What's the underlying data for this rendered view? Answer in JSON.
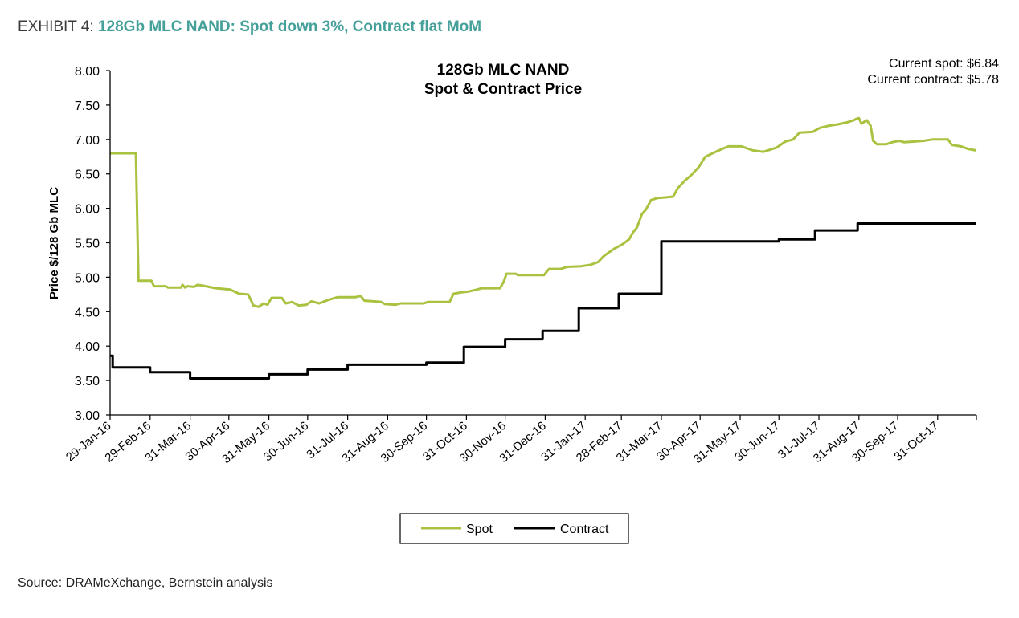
{
  "exhibit": {
    "prefix": "EXHIBIT 4:",
    "headline": "128Gb MLC NAND: Spot down 3%, Contract flat MoM"
  },
  "source": "Source: DRAMeXchange, Bernstein analysis",
  "chart_data": {
    "type": "line",
    "title": "128Gb MLC NAND",
    "subtitle": "Spot & Contract Price",
    "annotations": [
      "Current spot: $6.84",
      "Current contract: $5.78"
    ],
    "ylabel": "Price $/128 Gb MLC",
    "xlabel": "",
    "ylim": [
      3.0,
      8.0
    ],
    "xlim": [
      "2016-01-29",
      "2017-11-30"
    ],
    "y_ticks": [
      "3.00",
      "3.50",
      "4.00",
      "4.50",
      "5.00",
      "5.50",
      "6.00",
      "6.50",
      "7.00",
      "7.50",
      "8.00"
    ],
    "x_ticks": [
      {
        "date": "2016-01-29",
        "label": "29-Jan-16"
      },
      {
        "date": "2016-02-29",
        "label": "29-Feb-16"
      },
      {
        "date": "2016-03-31",
        "label": "31-Mar-16"
      },
      {
        "date": "2016-04-30",
        "label": "30-Apr-16"
      },
      {
        "date": "2016-05-31",
        "label": "31-May-16"
      },
      {
        "date": "2016-06-30",
        "label": "30-Jun-16"
      },
      {
        "date": "2016-07-31",
        "label": "31-Jul-16"
      },
      {
        "date": "2016-08-31",
        "label": "31-Aug-16"
      },
      {
        "date": "2016-09-30",
        "label": "30-Sep-16"
      },
      {
        "date": "2016-10-31",
        "label": "31-Oct-16"
      },
      {
        "date": "2016-11-30",
        "label": "30-Nov-16"
      },
      {
        "date": "2016-12-31",
        "label": "31-Dec-16"
      },
      {
        "date": "2017-01-31",
        "label": "31-Jan-17"
      },
      {
        "date": "2017-02-28",
        "label": "28-Feb-17"
      },
      {
        "date": "2017-03-31",
        "label": "31-Mar-17"
      },
      {
        "date": "2017-04-30",
        "label": "30-Apr-17"
      },
      {
        "date": "2017-05-31",
        "label": "31-May-17"
      },
      {
        "date": "2017-06-30",
        "label": "30-Jun-17"
      },
      {
        "date": "2017-07-31",
        "label": "31-Jul-17"
      },
      {
        "date": "2017-08-31",
        "label": "31-Aug-17"
      },
      {
        "date": "2017-09-30",
        "label": "30-Sep-17"
      },
      {
        "date": "2017-10-31",
        "label": "31-Oct-17"
      }
    ],
    "legend_position": "bottom-center",
    "grid": false,
    "series": [
      {
        "name": "Spot",
        "color": "#a9c23f",
        "step": false,
        "points": [
          [
            "2016-01-29",
            6.8
          ],
          [
            "2016-02-18",
            6.8
          ],
          [
            "2016-02-20",
            4.95
          ],
          [
            "2016-03-01",
            4.95
          ],
          [
            "2016-03-03",
            4.87
          ],
          [
            "2016-03-12",
            4.87
          ],
          [
            "2016-03-14",
            4.85
          ],
          [
            "2016-03-24",
            4.85
          ],
          [
            "2016-03-25",
            4.89
          ],
          [
            "2016-03-27",
            4.85
          ],
          [
            "2016-03-29",
            4.87
          ],
          [
            "2016-04-03",
            4.86
          ],
          [
            "2016-04-06",
            4.89
          ],
          [
            "2016-04-12",
            4.87
          ],
          [
            "2016-04-20",
            4.84
          ],
          [
            "2016-05-01",
            4.82
          ],
          [
            "2016-05-08",
            4.76
          ],
          [
            "2016-05-15",
            4.75
          ],
          [
            "2016-05-19",
            4.59
          ],
          [
            "2016-05-23",
            4.57
          ],
          [
            "2016-05-27",
            4.62
          ],
          [
            "2016-05-30",
            4.6
          ],
          [
            "2016-06-02",
            4.7
          ],
          [
            "2016-06-10",
            4.7
          ],
          [
            "2016-06-13",
            4.62
          ],
          [
            "2016-06-18",
            4.64
          ],
          [
            "2016-06-23",
            4.59
          ],
          [
            "2016-06-29",
            4.6
          ],
          [
            "2016-07-03",
            4.65
          ],
          [
            "2016-07-09",
            4.62
          ],
          [
            "2016-07-16",
            4.67
          ],
          [
            "2016-07-23",
            4.71
          ],
          [
            "2016-08-06",
            4.71
          ],
          [
            "2016-08-10",
            4.73
          ],
          [
            "2016-08-13",
            4.66
          ],
          [
            "2016-08-20",
            4.65
          ],
          [
            "2016-08-26",
            4.64
          ],
          [
            "2016-08-29",
            4.61
          ],
          [
            "2016-09-06",
            4.6
          ],
          [
            "2016-09-10",
            4.62
          ],
          [
            "2016-09-28",
            4.62
          ],
          [
            "2016-10-01",
            4.64
          ],
          [
            "2016-10-18",
            4.64
          ],
          [
            "2016-10-21",
            4.76
          ],
          [
            "2016-10-27",
            4.78
          ],
          [
            "2016-11-01",
            4.79
          ],
          [
            "2016-11-08",
            4.82
          ],
          [
            "2016-11-12",
            4.84
          ],
          [
            "2016-11-26",
            4.84
          ],
          [
            "2016-11-29",
            4.94
          ],
          [
            "2016-12-01",
            5.05
          ],
          [
            "2016-12-08",
            5.05
          ],
          [
            "2016-12-10",
            5.03
          ],
          [
            "2016-12-30",
            5.03
          ],
          [
            "2017-01-03",
            5.12
          ],
          [
            "2017-01-12",
            5.12
          ],
          [
            "2017-01-17",
            5.15
          ],
          [
            "2017-01-28",
            5.16
          ],
          [
            "2017-02-04",
            5.18
          ],
          [
            "2017-02-10",
            5.22
          ],
          [
            "2017-02-14",
            5.3
          ],
          [
            "2017-02-19",
            5.37
          ],
          [
            "2017-02-23",
            5.42
          ],
          [
            "2017-03-01",
            5.48
          ],
          [
            "2017-03-06",
            5.55
          ],
          [
            "2017-03-09",
            5.65
          ],
          [
            "2017-03-12",
            5.72
          ],
          [
            "2017-03-16",
            5.92
          ],
          [
            "2017-03-19",
            5.98
          ],
          [
            "2017-03-23",
            6.12
          ],
          [
            "2017-03-28",
            6.15
          ],
          [
            "2017-04-04",
            6.16
          ],
          [
            "2017-04-09",
            6.17
          ],
          [
            "2017-04-13",
            6.3
          ],
          [
            "2017-04-18",
            6.4
          ],
          [
            "2017-04-23",
            6.48
          ],
          [
            "2017-04-29",
            6.6
          ],
          [
            "2017-05-04",
            6.75
          ],
          [
            "2017-05-12",
            6.82
          ],
          [
            "2017-05-18",
            6.87
          ],
          [
            "2017-05-22",
            6.9
          ],
          [
            "2017-06-01",
            6.9
          ],
          [
            "2017-06-10",
            6.84
          ],
          [
            "2017-06-18",
            6.82
          ],
          [
            "2017-06-28",
            6.88
          ],
          [
            "2017-07-05",
            6.97
          ],
          [
            "2017-07-11",
            7.0
          ],
          [
            "2017-07-16",
            7.1
          ],
          [
            "2017-07-26",
            7.11
          ],
          [
            "2017-08-01",
            7.17
          ],
          [
            "2017-08-08",
            7.2
          ],
          [
            "2017-08-15",
            7.22
          ],
          [
            "2017-08-22",
            7.25
          ],
          [
            "2017-08-27",
            7.28
          ],
          [
            "2017-08-29",
            7.3
          ],
          [
            "2017-08-31",
            7.31
          ],
          [
            "2017-09-02",
            7.23
          ],
          [
            "2017-09-06",
            7.28
          ],
          [
            "2017-09-09",
            7.2
          ],
          [
            "2017-09-11",
            6.98
          ],
          [
            "2017-09-14",
            6.93
          ],
          [
            "2017-09-21",
            6.93
          ],
          [
            "2017-09-26",
            6.96
          ],
          [
            "2017-10-01",
            6.98
          ],
          [
            "2017-10-05",
            6.96
          ],
          [
            "2017-10-13",
            6.97
          ],
          [
            "2017-10-20",
            6.98
          ],
          [
            "2017-10-27",
            7.0
          ],
          [
            "2017-11-08",
            7.0
          ],
          [
            "2017-11-11",
            6.92
          ],
          [
            "2017-11-18",
            6.9
          ],
          [
            "2017-11-24",
            6.86
          ],
          [
            "2017-11-30",
            6.84
          ]
        ]
      },
      {
        "name": "Contract",
        "color": "#000000",
        "step": true,
        "points": [
          [
            "2016-01-29",
            3.86
          ],
          [
            "2016-01-31",
            3.69
          ],
          [
            "2016-02-29",
            3.62
          ],
          [
            "2016-03-31",
            3.53
          ],
          [
            "2016-04-30",
            3.53
          ],
          [
            "2016-05-31",
            3.59
          ],
          [
            "2016-06-30",
            3.66
          ],
          [
            "2016-07-31",
            3.73
          ],
          [
            "2016-08-31",
            3.73
          ],
          [
            "2016-09-30",
            3.76
          ],
          [
            "2016-10-29",
            3.99
          ],
          [
            "2016-11-30",
            4.1
          ],
          [
            "2016-12-29",
            4.22
          ],
          [
            "2017-01-26",
            4.55
          ],
          [
            "2017-02-26",
            4.76
          ],
          [
            "2017-03-31",
            5.52
          ],
          [
            "2017-04-30",
            5.52
          ],
          [
            "2017-05-31",
            5.52
          ],
          [
            "2017-06-30",
            5.55
          ],
          [
            "2017-07-28",
            5.68
          ],
          [
            "2017-08-30",
            5.78
          ],
          [
            "2017-09-30",
            5.78
          ],
          [
            "2017-10-31",
            5.78
          ],
          [
            "2017-11-30",
            5.78
          ]
        ]
      }
    ]
  }
}
